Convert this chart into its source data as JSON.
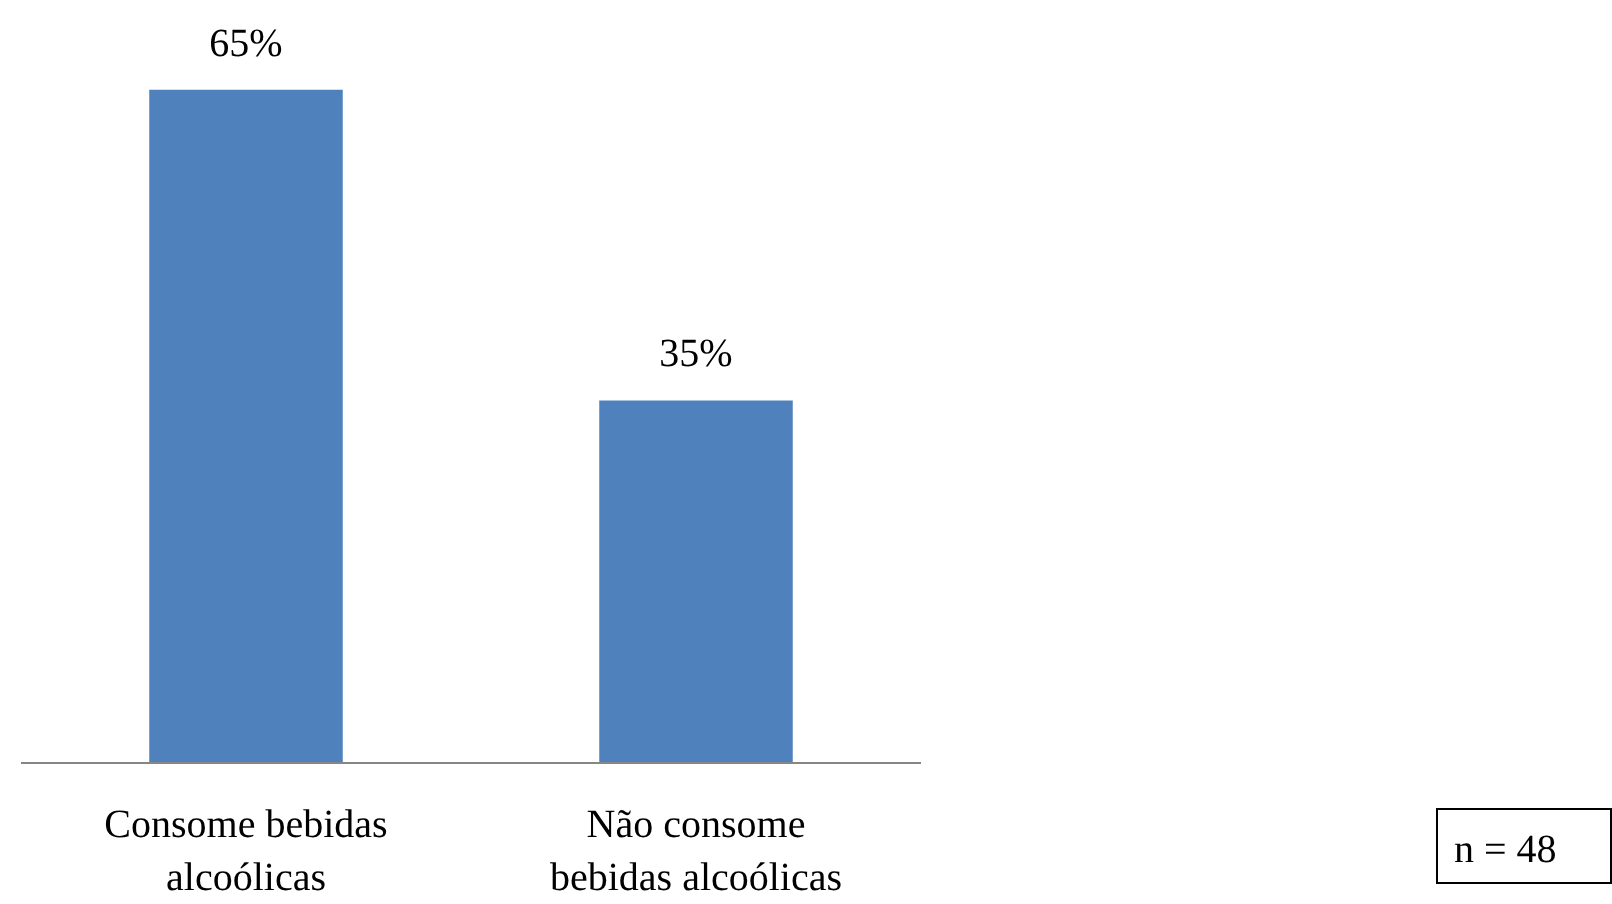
{
  "chart_data": {
    "type": "bar",
    "categories": [
      "Consome bebidas alcoólicas",
      "Não consome bebidas alcoólicas"
    ],
    "values": [
      65,
      35
    ],
    "color": "#4f81bd",
    "value_labels": [
      "65%",
      "35%"
    ],
    "grid": false,
    "annotations": [
      "n = 48"
    ]
  }
}
